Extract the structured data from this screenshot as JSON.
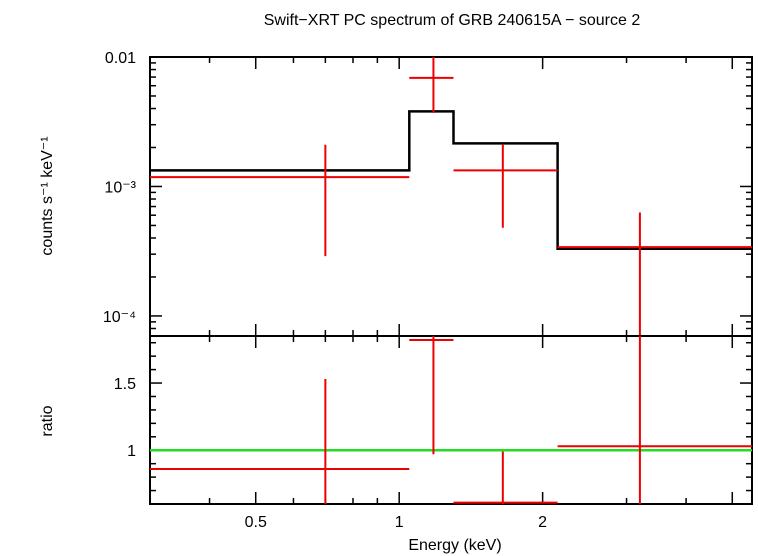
{
  "chart_data": {
    "type": "scatter",
    "title": "Swift−XRT PC spectrum of GRB 240615A − source 2",
    "xlabel": "Energy (keV)",
    "xscale": "log",
    "xlim": [
      0.3,
      5.5
    ],
    "x_ticklabels": [
      "0.5",
      "1",
      "2"
    ],
    "panels": [
      {
        "name": "spectrum",
        "ylabel": "counts s⁻¹ keV⁻¹",
        "yscale": "log",
        "ylim": [
          7e-05,
          0.01
        ],
        "y_ticklabels": [
          "0.01",
          "10⁻³",
          "10⁻⁴"
        ],
        "data": {
          "color": "#ee0000",
          "points": [
            {
              "x": 0.7,
              "xlo": 0.3,
              "xhi": 1.05,
              "y": 0.00118,
              "ylo": 0.00029,
              "yhi": 0.0021
            },
            {
              "x": 1.18,
              "xlo": 1.05,
              "xhi": 1.3,
              "y": 0.0069,
              "ylo": 0.0037,
              "yhi": 0.01
            },
            {
              "x": 1.65,
              "xlo": 1.3,
              "xhi": 2.15,
              "y": 0.00133,
              "ylo": 0.00048,
              "yhi": 0.0021
            },
            {
              "x": 3.2,
              "xlo": 2.15,
              "xhi": 5.5,
              "y": 0.00034,
              "ylo": 7e-05,
              "yhi": 0.00063
            }
          ]
        },
        "model": {
          "color": "#000000",
          "steps": [
            {
              "xlo": 0.3,
              "xhi": 1.05,
              "y": 0.00133
            },
            {
              "xlo": 1.05,
              "xhi": 1.3,
              "y": 0.0038
            },
            {
              "xlo": 1.3,
              "xhi": 2.15,
              "y": 0.00215
            },
            {
              "xlo": 2.15,
              "xhi": 5.5,
              "y": 0.00033
            }
          ]
        }
      },
      {
        "name": "ratio",
        "ylabel": "ratio",
        "yscale": "linear",
        "ylim": [
          0.6,
          1.85
        ],
        "y_ticklabels": [
          "1.5",
          "1"
        ],
        "data": {
          "color": "#ee0000",
          "points": [
            {
              "x": 0.7,
              "xlo": 0.3,
              "xhi": 1.05,
              "y": 0.86,
              "ylo": 0.6,
              "yhi": 1.53
            },
            {
              "x": 1.18,
              "xlo": 1.05,
              "xhi": 1.3,
              "y": 1.82,
              "ylo": 0.97,
              "yhi": 1.85
            },
            {
              "x": 1.65,
              "xlo": 1.3,
              "xhi": 2.15,
              "y": 0.61,
              "ylo": 0.6,
              "yhi": 0.99
            },
            {
              "x": 3.2,
              "xlo": 2.15,
              "xhi": 5.5,
              "y": 1.03,
              "ylo": 0.6,
              "yhi": 1.85
            }
          ]
        },
        "reference_line": {
          "y": 1,
          "color": "#22dd22"
        }
      }
    ]
  }
}
